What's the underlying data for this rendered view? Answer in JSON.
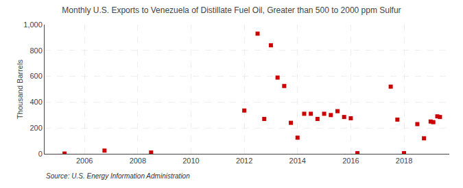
{
  "chart_data": {
    "type": "scatter",
    "title": "Monthly U.S. Exports to Venezuela of Distillate Fuel Oil, Greater than 500 to 2000 ppm Sulfur",
    "ylabel": "Thousand Barrels",
    "annotations": [
      "Source: U.S. Energy Information Administration"
    ],
    "x": [
      2005.25,
      2006.75,
      2008.5,
      2012.0,
      2012.5,
      2012.75,
      2013.0,
      2013.25,
      2013.5,
      2013.75,
      2014.0,
      2014.25,
      2014.5,
      2014.75,
      2015.0,
      2015.25,
      2015.5,
      2015.75,
      2016.0,
      2016.25,
      2017.5,
      2017.75,
      2018.0,
      2018.5,
      2018.75,
      2019.0,
      2019.1,
      2019.25,
      2019.35
    ],
    "values": [
      2,
      25,
      10,
      335,
      930,
      270,
      840,
      590,
      525,
      240,
      125,
      310,
      310,
      270,
      310,
      300,
      330,
      285,
      275,
      5,
      520,
      265,
      5,
      230,
      120,
      250,
      245,
      290,
      285
    ],
    "color": "#cc0000",
    "marker": "square",
    "xlim": [
      2004.5,
      2019.7
    ],
    "xticks": [
      2006,
      2008,
      2010,
      2012,
      2014,
      2016,
      2018
    ],
    "ylim": [
      0,
      1000
    ],
    "yticks": [
      0,
      200,
      400,
      600,
      800,
      {
        "value": 1000,
        "label": "1,000"
      }
    ],
    "grid": true
  }
}
